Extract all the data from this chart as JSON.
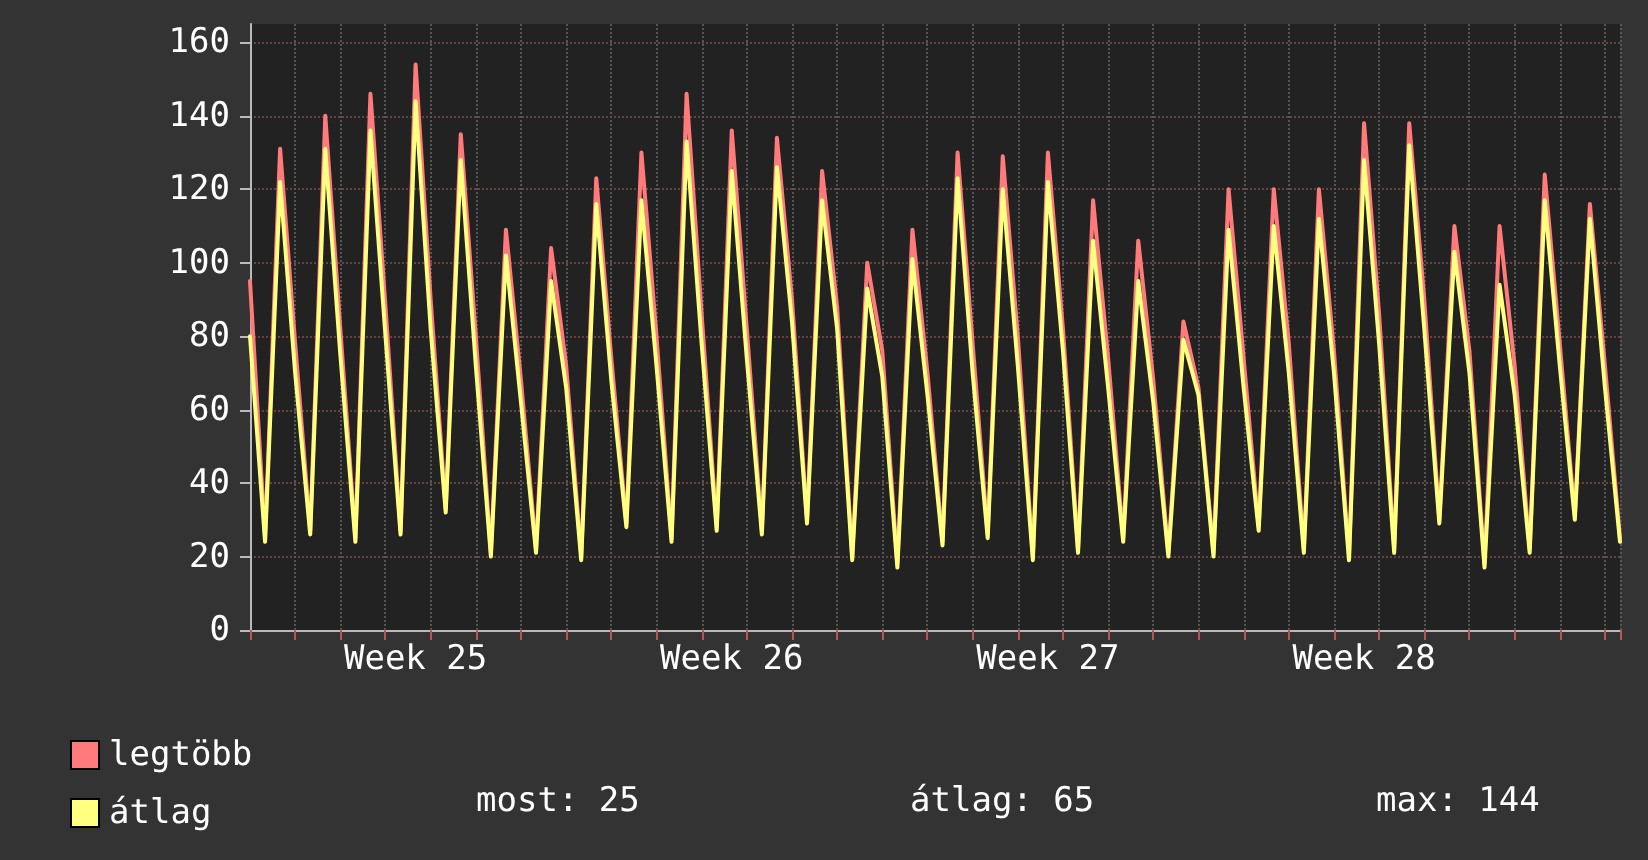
{
  "chart_data": {
    "type": "line",
    "categories": [
      null,
      null,
      null,
      null,
      null,
      null,
      null,
      null,
      null,
      null,
      null,
      "Week 25",
      null,
      null,
      null,
      null,
      null,
      null,
      null,
      null,
      null,
      null,
      null,
      null,
      null,
      null,
      null,
      null,
      null,
      null,
      null,
      null,
      "Week 26",
      null,
      null,
      null,
      null,
      null,
      null,
      null,
      null,
      null,
      null,
      null,
      null,
      null,
      null,
      null,
      null,
      null,
      null,
      null,
      null,
      "Week 27",
      null,
      null,
      null,
      null,
      null,
      null,
      null,
      null,
      null,
      null,
      null,
      null,
      null,
      null,
      null,
      null,
      null,
      null,
      null,
      null,
      "Week 28",
      null,
      null,
      null,
      null,
      null,
      null,
      null,
      null,
      null,
      null,
      null,
      null,
      null,
      null,
      null,
      null,
      null
    ],
    "series": [
      {
        "name": "legtöbb",
        "color": "#ff7a7a",
        "values": [
          95,
          25,
          131,
          78,
          27,
          140,
          82,
          25,
          146,
          88,
          27,
          154,
          90,
          33,
          135,
          80,
          21,
          109,
          68,
          22,
          104,
          72,
          20,
          123,
          74,
          29,
          130,
          80,
          25,
          146,
          86,
          28,
          136,
          82,
          27,
          134,
          90,
          30,
          125,
          88,
          20,
          100,
          76,
          18,
          109,
          70,
          24,
          130,
          78,
          26,
          129,
          80,
          20,
          130,
          82,
          22,
          117,
          74,
          25,
          106,
          68,
          21,
          84,
          66,
          21,
          120,
          74,
          28,
          120,
          78,
          22,
          120,
          76,
          20,
          138,
          86,
          22,
          138,
          90,
          30,
          110,
          76,
          18,
          110,
          72,
          22,
          124,
          78,
          31,
          116,
          72,
          25
        ]
      },
      {
        "name": "átlag",
        "color": "#ffff80",
        "values": [
          80,
          24,
          122,
          70,
          26,
          131,
          75,
          24,
          136,
          80,
          26,
          144,
          82,
          32,
          128,
          72,
          20,
          102,
          62,
          21,
          95,
          66,
          19,
          116,
          68,
          28,
          117,
          72,
          24,
          133,
          78,
          27,
          125,
          74,
          26,
          126,
          84,
          29,
          117,
          82,
          19,
          93,
          69,
          17,
          101,
          64,
          23,
          123,
          70,
          25,
          120,
          72,
          19,
          122,
          76,
          21,
          106,
          66,
          24,
          95,
          62,
          20,
          79,
          64,
          20,
          109,
          66,
          27,
          110,
          70,
          21,
          112,
          70,
          19,
          128,
          78,
          21,
          132,
          82,
          29,
          103,
          70,
          17,
          94,
          64,
          21,
          117,
          72,
          30,
          112,
          66,
          24
        ]
      }
    ],
    "ylim": [
      0,
      165
    ],
    "yticks": [
      0,
      20,
      40,
      60,
      80,
      100,
      120,
      140,
      160
    ],
    "grid": true,
    "legend": "bottom left",
    "marker": "none",
    "line_style": "solid",
    "annotations": [
      "most: 25",
      "átlag: 65",
      "max: 144"
    ]
  }
}
